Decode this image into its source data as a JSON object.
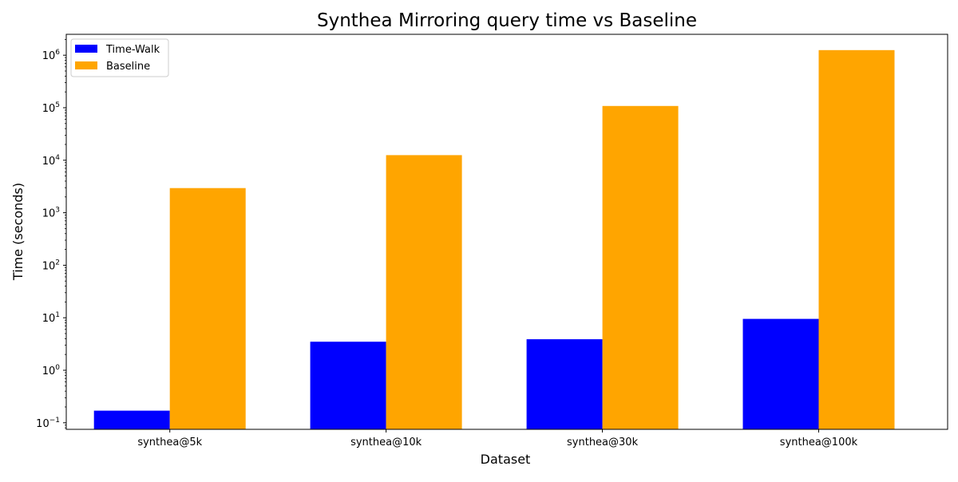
{
  "chart_data": {
    "type": "bar",
    "title": "Synthea Mirroring query time vs Baseline",
    "xlabel": "Dataset",
    "ylabel": "Time (seconds)",
    "yscale": "log",
    "ylim": [
      0.075,
      2500000
    ],
    "categories": [
      "synthea@5k",
      "synthea@10k",
      "synthea@30k",
      "synthea@100k"
    ],
    "series": [
      {
        "name": "Time-Walk",
        "color": "#0000ff",
        "values": [
          0.17,
          3.5,
          3.9,
          9.5
        ]
      },
      {
        "name": "Baseline",
        "color": "#ffa500",
        "values": [
          2950,
          12500,
          108000,
          1250000
        ]
      }
    ],
    "y_ticks": [
      {
        "value": 0.1,
        "base": "10",
        "exp": "−1"
      },
      {
        "value": 1,
        "base": "10",
        "exp": "0"
      },
      {
        "value": 10,
        "base": "10",
        "exp": "1"
      },
      {
        "value": 100,
        "base": "10",
        "exp": "2"
      },
      {
        "value": 1000,
        "base": "10",
        "exp": "3"
      },
      {
        "value": 10000,
        "base": "10",
        "exp": "4"
      },
      {
        "value": 100000,
        "base": "10",
        "exp": "5"
      },
      {
        "value": 1000000,
        "base": "10",
        "exp": "6"
      }
    ],
    "legend_position": "top-left",
    "grid": false
  }
}
